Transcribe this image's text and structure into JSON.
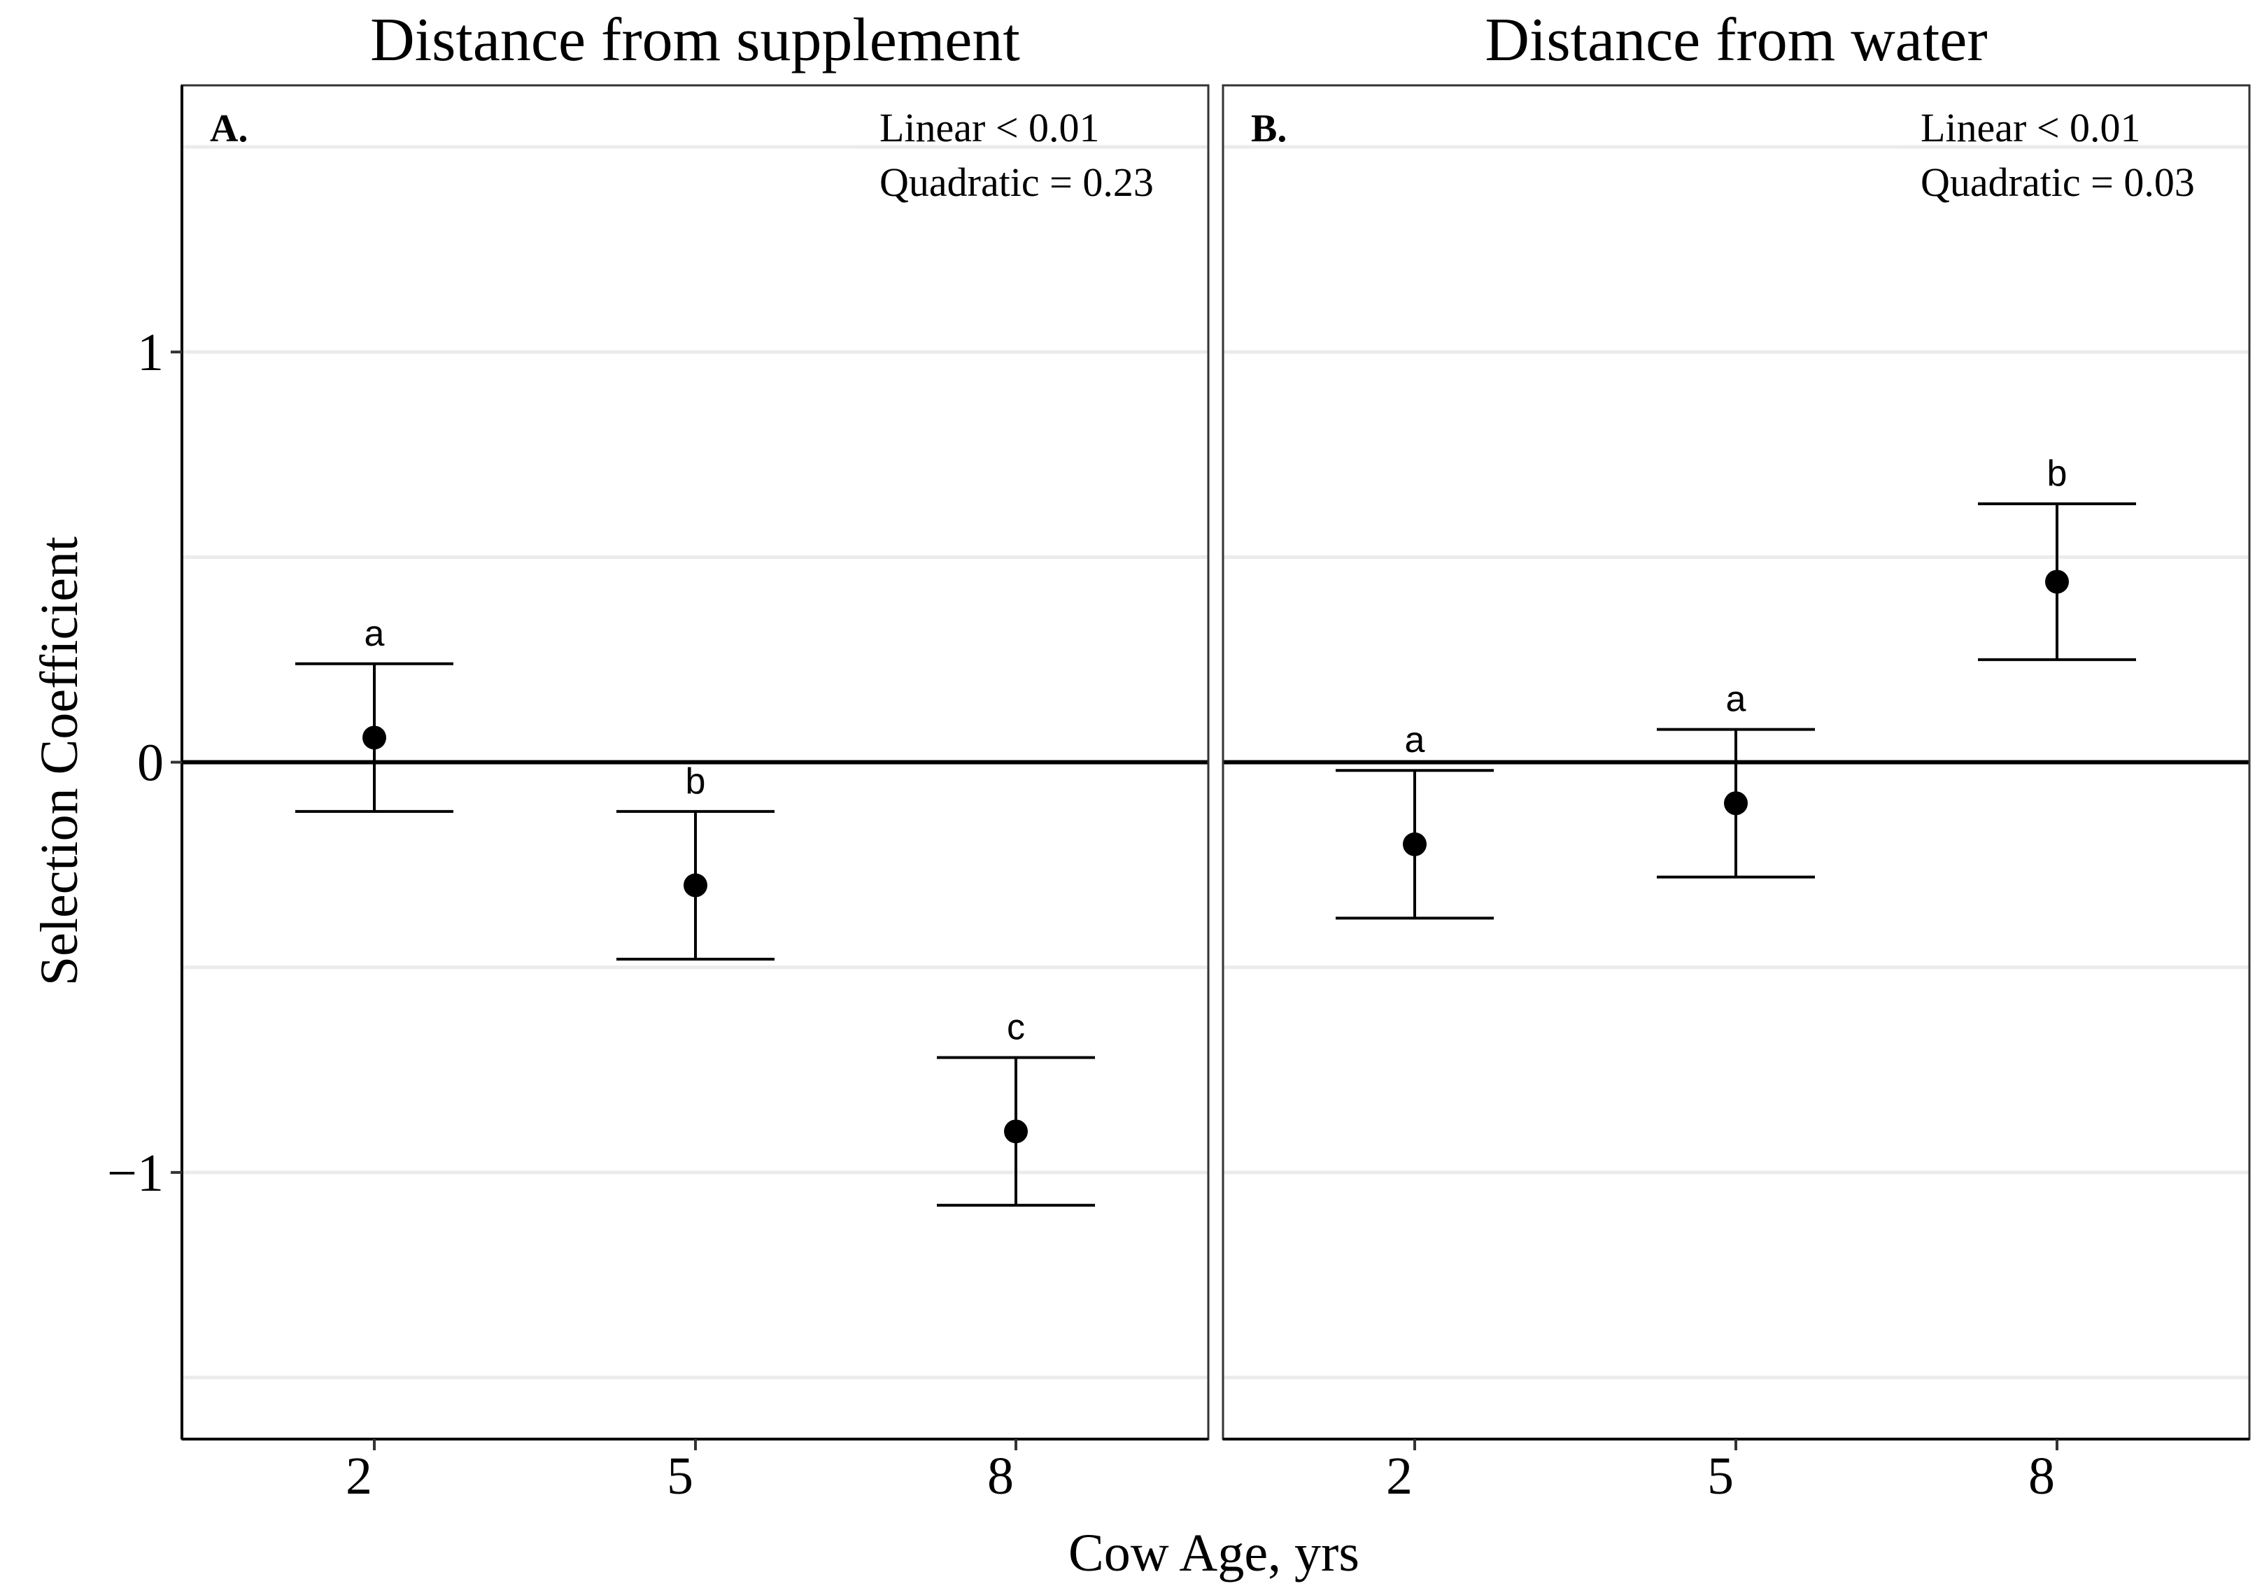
{
  "chart_data": {
    "type": "scatter",
    "ylabel": "Selection Coefficient",
    "xlabel": "Cow Age, yrs",
    "categories": [
      "2",
      "5",
      "8"
    ],
    "ylim": [
      -1.65,
      1.65
    ],
    "yticks": [
      -1,
      0,
      1
    ],
    "ytick_labels": [
      "−1",
      "0",
      "1"
    ],
    "grid": true,
    "reference_line": 0,
    "colors": {
      "point": "#000000",
      "grid": "#ebebeb",
      "frame": "#333333"
    },
    "panels": [
      {
        "title": "Distance from supplement",
        "tag": "A.",
        "stats": [
          "Linear < 0.01",
          "Quadratic = 0.23"
        ],
        "points": [
          {
            "x": "2",
            "y": 0.06,
            "lower": -0.12,
            "upper": 0.24,
            "letter": "a"
          },
          {
            "x": "5",
            "y": -0.3,
            "lower": -0.48,
            "upper": -0.12,
            "letter": "b"
          },
          {
            "x": "8",
            "y": -0.9,
            "lower": -1.08,
            "upper": -0.72,
            "letter": "c"
          }
        ]
      },
      {
        "title": "Distance from water",
        "tag": "B.",
        "stats": [
          "Linear < 0.01",
          "Quadratic = 0.03"
        ],
        "points": [
          {
            "x": "2",
            "y": -0.2,
            "lower": -0.38,
            "upper": -0.02,
            "letter": "a"
          },
          {
            "x": "5",
            "y": -0.1,
            "lower": -0.28,
            "upper": 0.08,
            "letter": "a"
          },
          {
            "x": "8",
            "y": 0.44,
            "lower": 0.25,
            "upper": 0.63,
            "letter": "b"
          }
        ]
      }
    ]
  }
}
